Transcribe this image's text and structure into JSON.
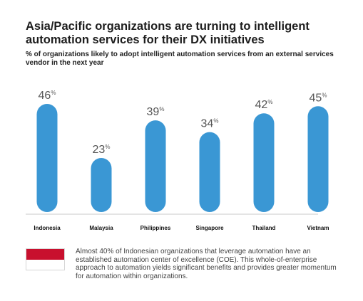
{
  "title": "Asia/Pacific organizations are turning to intelligent automation services for their DX initiatives",
  "subtitle": "% of organizations likely to adopt intelligent automation services from an external services vendor in the next year",
  "note": "Almost 40% of Indonesian organizations that leverage automation have an established automation center of excellence (COE). This whole-of-enterprise approach to automation yields significant benefits and provides greater momentum for automation within organizations.",
  "colors": {
    "bar": "#3a97d4",
    "flag_red": "#c8102e",
    "flag_white": "#ffffff"
  },
  "icon": "indonesia-flag-icon",
  "chart_data": {
    "type": "bar",
    "title": "Asia/Pacific organizations are turning to intelligent automation services for their DX initiatives",
    "subtitle": "% of organizations likely to adopt intelligent automation services from an external services vendor in the next year",
    "categories": [
      "Indonesia",
      "Malaysia",
      "Philippines",
      "Singapore",
      "Thailand",
      "Vietnam"
    ],
    "values": [
      46,
      23,
      39,
      34,
      42,
      45
    ],
    "value_suffix": "%",
    "xlabel": "",
    "ylabel": "",
    "ylim": [
      0,
      46
    ],
    "grid": false,
    "legend": "none"
  }
}
